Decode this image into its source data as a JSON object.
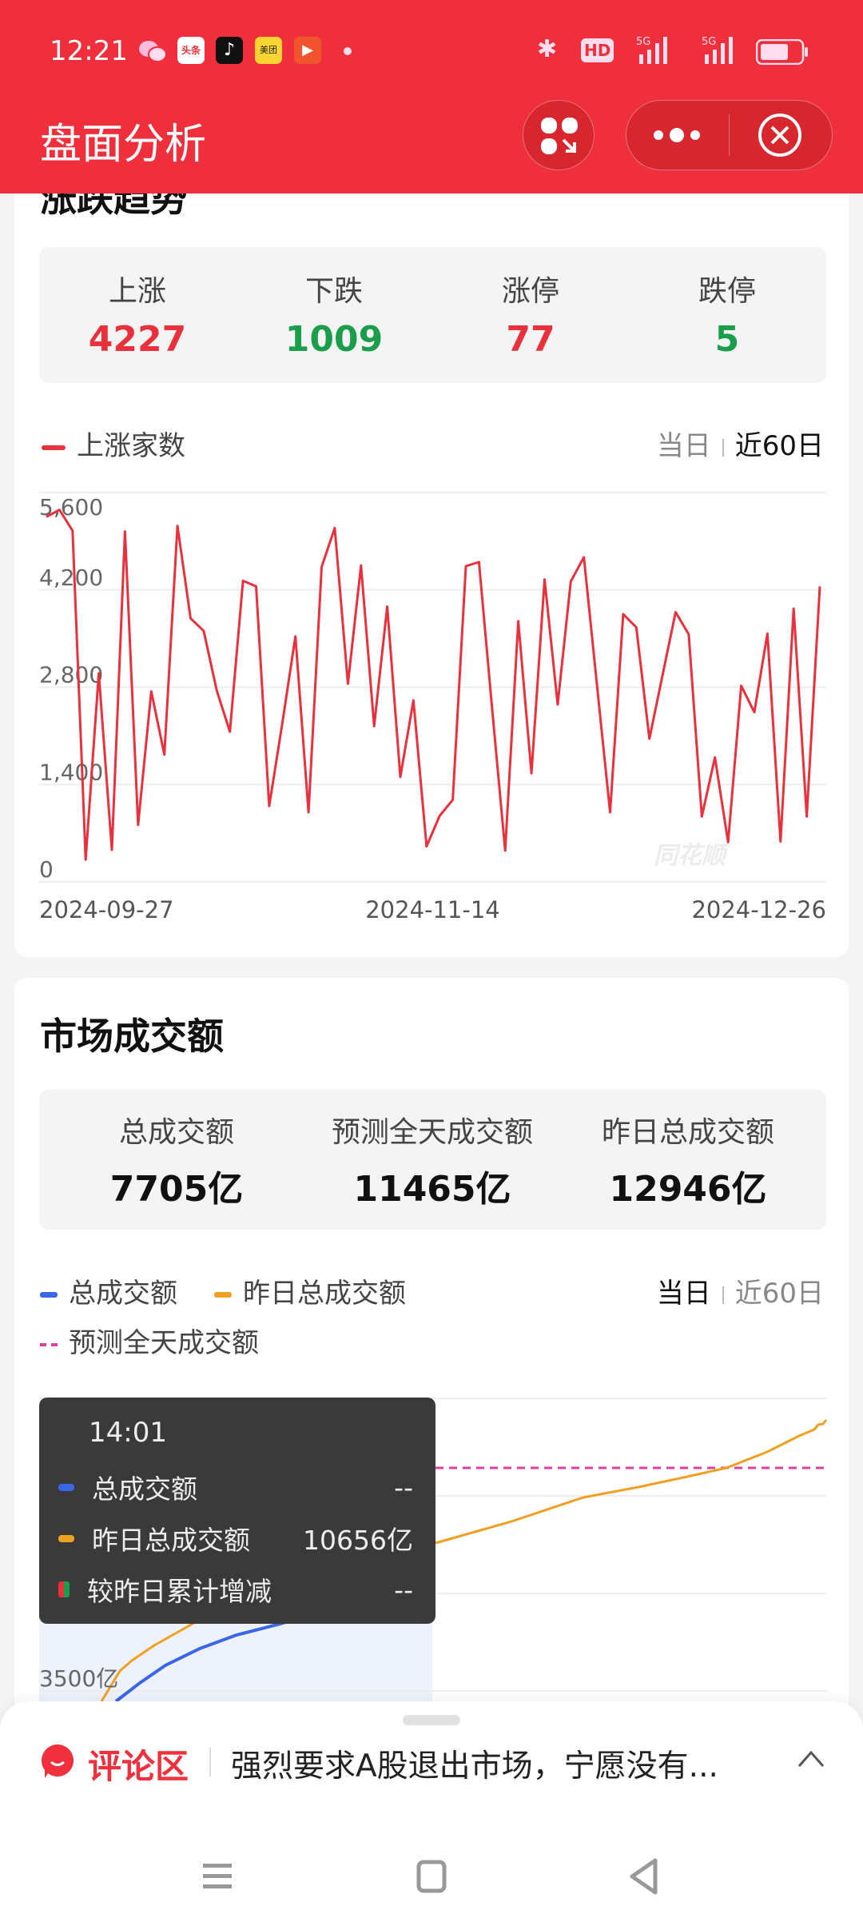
{
  "status_bar": {
    "time": "12:21",
    "notification_icons": [
      "wechat-icon",
      "toutiao-icon",
      "tiktok-icon",
      "meituan-icon",
      "video-play-icon",
      "dot-icon"
    ],
    "toutiao_label": "头条",
    "meituan_label": "美团",
    "network": [
      "bluetooth-icon",
      "hd-icon",
      "5g-signal-icon",
      "5g-signal-icon",
      "battery-icon"
    ],
    "hd_label": "HD",
    "net_label": "5G"
  },
  "header": {
    "title": "盘面分析",
    "colors": {
      "bar": "#EF303C",
      "button": "#D8262F"
    }
  },
  "trend_card": {
    "title": "涨跌趋势",
    "stats": [
      {
        "label": "上涨",
        "value": "4227",
        "color": "#E8313C"
      },
      {
        "label": "下跌",
        "value": "1009",
        "color": "#1B9E4B"
      },
      {
        "label": "涨停",
        "value": "77",
        "color": "#E8313C"
      },
      {
        "label": "跌停",
        "value": "5",
        "color": "#1B9E4B"
      }
    ],
    "legend": "上涨家数",
    "range_options": [
      "当日",
      "近60日"
    ],
    "range_selected": "近60日",
    "watermark": "同花顺"
  },
  "chart_data": {
    "type": "line",
    "title": "",
    "xlabel": "",
    "ylabel": "",
    "ylim": [
      0,
      5600
    ],
    "yticks": [
      "5,600",
      "4,200",
      "2,800",
      "1,400",
      "0"
    ],
    "ytick_values": [
      5600,
      4200,
      2800,
      1400,
      0
    ],
    "xtick_labels": [
      "2024-09-27",
      "2024-11-14",
      "2024-12-26"
    ],
    "grid": true,
    "color": "#E8313C",
    "series": [
      {
        "name": "上涨家数",
        "values": [
          5250,
          5350,
          5050,
          320,
          3000,
          460,
          5040,
          820,
          2740,
          1830,
          5120,
          3790,
          3610,
          2750,
          2160,
          4330,
          4250,
          1090,
          2280,
          3530,
          1000,
          4530,
          5090,
          2850,
          4550,
          2240,
          3960,
          1510,
          2610,
          510,
          950,
          1180,
          4540,
          4600,
          2500,
          450,
          3750,
          1560,
          4350,
          2550,
          4320,
          4670,
          2830,
          1000,
          3850,
          3660,
          2060,
          2970,
          3880,
          3560,
          940,
          1790,
          570,
          2820,
          2440,
          3570,
          580,
          3930,
          940,
          4250
        ]
      }
    ]
  },
  "volume_card": {
    "title": "市场成交额",
    "stats": [
      {
        "label": "总成交额",
        "value": "7705亿"
      },
      {
        "label": "预测全天成交额",
        "value": "11465亿"
      },
      {
        "label": "昨日总成交额",
        "value": "12946亿"
      }
    ],
    "legend": [
      {
        "label": "总成交额",
        "color": "#3A66E8",
        "style": "solid"
      },
      {
        "label": "昨日总成交额",
        "color": "#F0A020",
        "style": "solid"
      },
      {
        "label": "预测全天成交额",
        "color": "#E040A0",
        "style": "dashed"
      }
    ],
    "range_options": [
      "当日",
      "近60日"
    ],
    "range_selected": "当日",
    "ytick": "3500亿",
    "tooltip": {
      "time": "14:01",
      "rows": [
        {
          "label": "总成交额",
          "value": "--",
          "color": "#3A66E8"
        },
        {
          "label": "昨日总成交额",
          "value": "10656亿",
          "color": "#F0A020"
        },
        {
          "label": "较昨日累计增减",
          "value": "--",
          "color": "#E8313C"
        }
      ]
    }
  },
  "comment_bar": {
    "label": "评论区",
    "preview": "强烈要求A股退出市场，宁愿没有...",
    "accent": "#F0303C"
  },
  "nav_bar": {
    "icons": [
      "menu-icon",
      "home-icon",
      "back-icon"
    ]
  }
}
